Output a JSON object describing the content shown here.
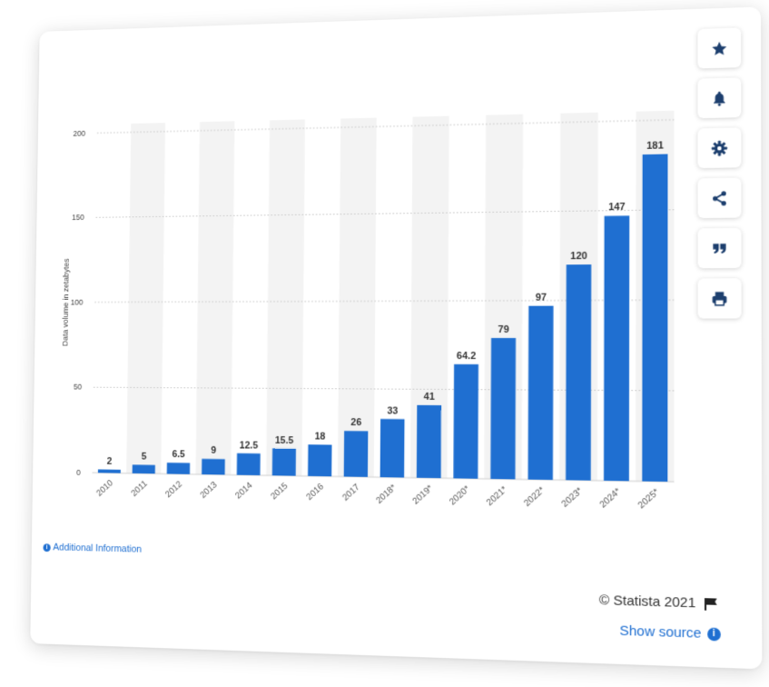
{
  "chart_data": {
    "type": "bar",
    "categories": [
      "2010",
      "2011",
      "2012",
      "2013",
      "2014",
      "2015",
      "2016",
      "2017",
      "2018*",
      "2019*",
      "2020*",
      "2021*",
      "2022*",
      "2023*",
      "2024*",
      "2025*"
    ],
    "values": [
      2,
      5,
      6.5,
      9,
      12.5,
      15.5,
      18,
      26,
      33,
      41,
      64.2,
      79,
      97,
      120,
      147,
      181
    ],
    "value_labels": [
      "2",
      "5",
      "6.5",
      "9",
      "12.5",
      "15.5",
      "18",
      "26",
      "33",
      "41",
      "64.2",
      "79",
      "97",
      "120",
      "147",
      "181"
    ],
    "ylabel": "Data volume in zetabytes",
    "yticks": [
      0,
      50,
      100,
      150,
      200
    ],
    "ylim": [
      0,
      200
    ],
    "grid": true,
    "bar_color": "#1f6fd1",
    "alt_band_color": "#f3f3f3"
  },
  "toolbar": {
    "buttons": [
      {
        "name": "favorite-button",
        "icon": "star-icon"
      },
      {
        "name": "notification-button",
        "icon": "bell-icon"
      },
      {
        "name": "settings-button",
        "icon": "gear-icon"
      },
      {
        "name": "share-button",
        "icon": "share-icon"
      },
      {
        "name": "cite-button",
        "icon": "quote-icon"
      },
      {
        "name": "print-button",
        "icon": "printer-icon"
      }
    ]
  },
  "footer": {
    "additional_info": "Additional Information",
    "copyright": "© Statista 2021",
    "show_source": "Show source"
  }
}
